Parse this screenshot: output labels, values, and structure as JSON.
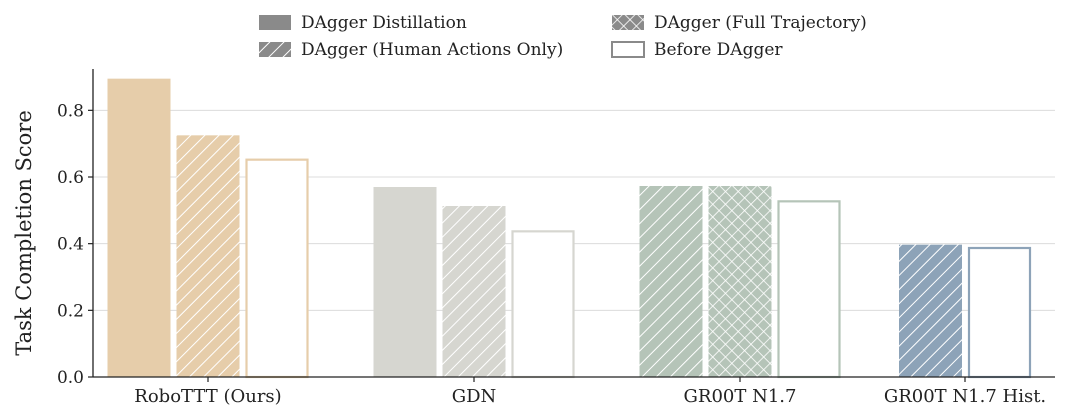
{
  "chart_data": {
    "type": "bar",
    "title": "",
    "xlabel": "",
    "ylabel": "Task Completion Score",
    "ylim": [
      0,
      0.9
    ],
    "yticks": [
      "0.0",
      "0.2",
      "0.4",
      "0.6",
      "0.8"
    ],
    "grid": "horizontal",
    "legend_position": "top-center",
    "legend": [
      {
        "name": "DAgger Distillation",
        "pattern": "solid"
      },
      {
        "name": "DAgger (Human Actions Only)",
        "pattern": "hatch"
      },
      {
        "name": "DAgger (Full Trajectory)",
        "pattern": "cross"
      },
      {
        "name": "Before DAgger",
        "pattern": "outline"
      }
    ],
    "groups": [
      {
        "category": "RoboTTT (Ours)",
        "color": "#e6cdaa",
        "bars": [
          {
            "series": "DAgger Distillation",
            "value": 0.895
          },
          {
            "series": "DAgger (Human Actions Only)",
            "value": 0.725
          },
          {
            "series": "Before DAgger",
            "value": 0.655
          }
        ]
      },
      {
        "category": "GDN",
        "color": "#d6d6d0",
        "bars": [
          {
            "series": "DAgger Distillation",
            "value": 0.57
          },
          {
            "series": "DAgger (Human Actions Only)",
            "value": 0.513
          },
          {
            "series": "Before DAgger",
            "value": 0.44
          }
        ]
      },
      {
        "category": "GR00T N1.7",
        "color": "#b5c4b8",
        "bars": [
          {
            "series": "DAgger (Human Actions Only)",
            "value": 0.573
          },
          {
            "series": "DAgger (Full Trajectory)",
            "value": 0.573
          },
          {
            "series": "Before DAgger",
            "value": 0.53
          }
        ]
      },
      {
        "category": "GR00T N1.7 Hist.",
        "color": "#8da3b8",
        "bars": [
          {
            "series": "DAgger (Human Actions Only)",
            "value": 0.397
          },
          {
            "series": "Before DAgger",
            "value": 0.39
          }
        ]
      }
    ]
  }
}
